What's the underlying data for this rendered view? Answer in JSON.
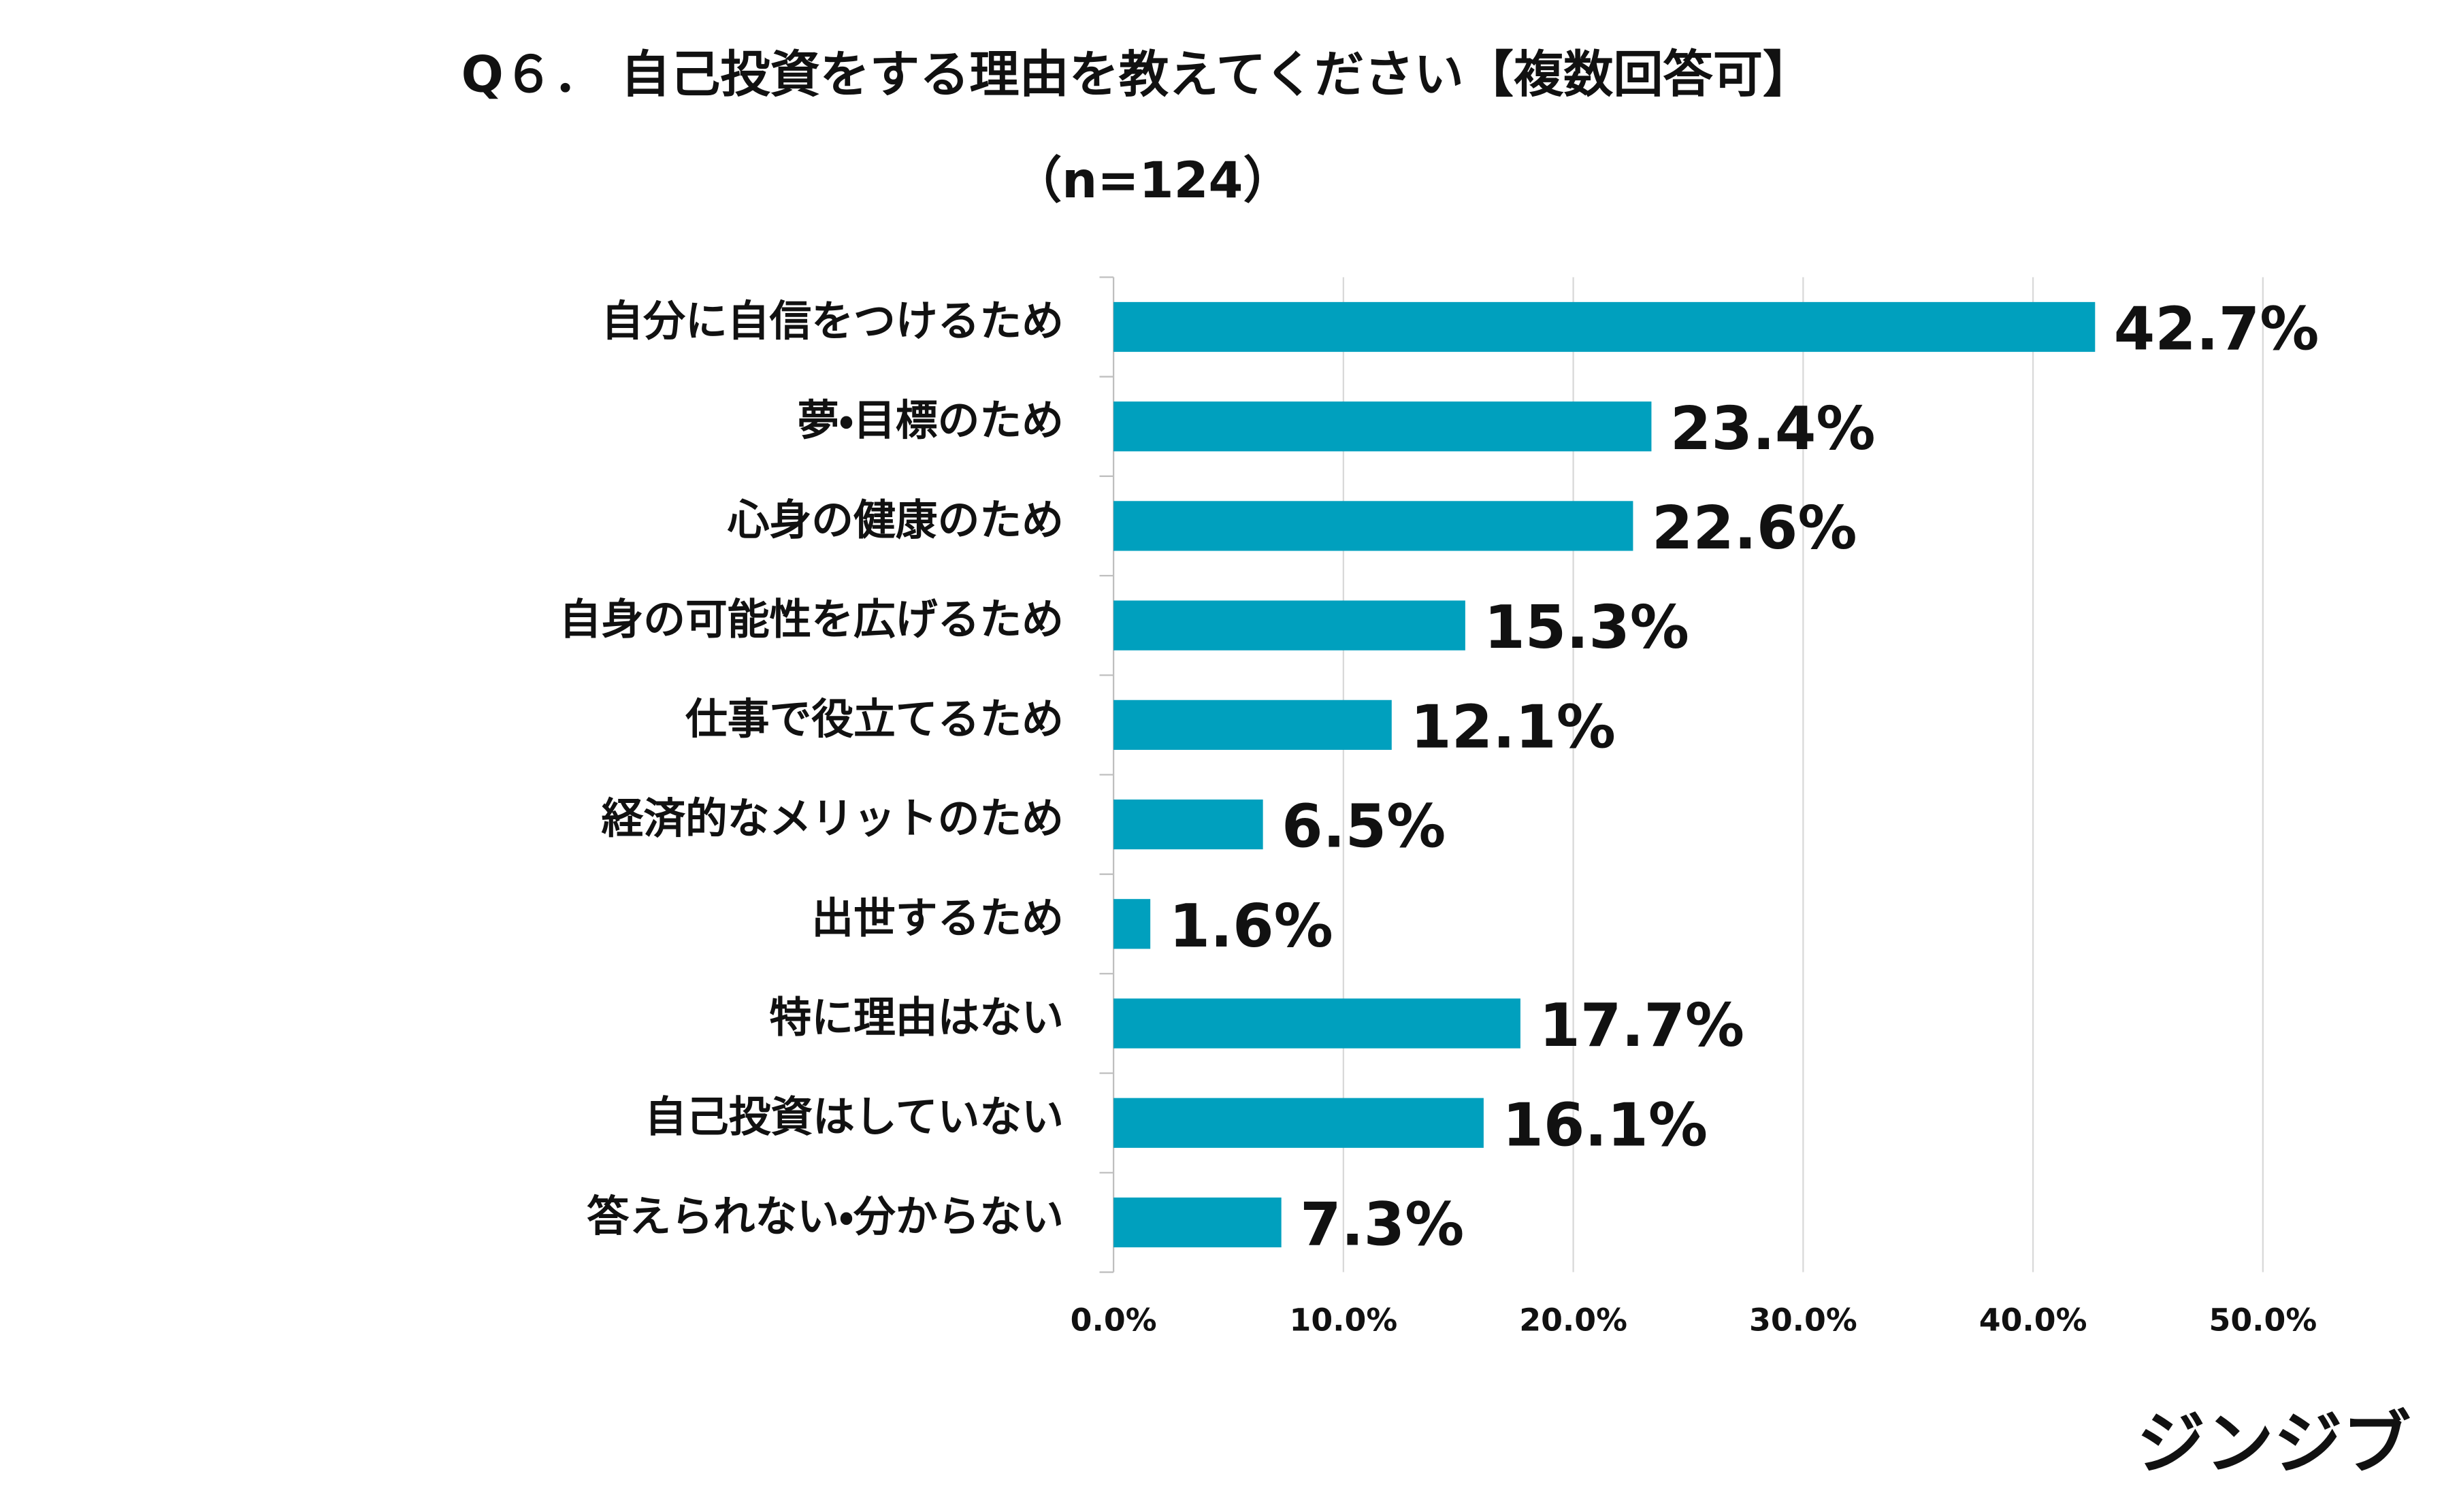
{
  "chart_data": {
    "type": "barh",
    "title": "Q６． 自己投資をする理由を教えてください【複数回答可】",
    "subtitle": "（n=124）",
    "categories": [
      "自分に自信をつけるため",
      "夢・目標のため",
      "心身の健康のため",
      "自身の可能性を広げるため",
      "仕事で役立てるため",
      "経済的なメリットのため",
      "出世するため",
      "特に理由はない",
      "自己投資はしていない",
      "答えられない・分からない"
    ],
    "values": [
      42.7,
      23.4,
      22.6,
      15.3,
      12.1,
      6.5,
      1.6,
      17.7,
      16.1,
      7.3
    ],
    "value_labels": [
      "42.7%",
      "23.4%",
      "22.6%",
      "15.3%",
      "12.1%",
      "6.5%",
      "1.6%",
      "17.7%",
      "16.1%",
      "7.3%"
    ],
    "color": "#00a0be",
    "xlim": [
      0,
      50
    ],
    "xticks": [
      {
        "value": 0,
        "label": "0.0%"
      },
      {
        "value": 10,
        "label": "10.0%"
      },
      {
        "value": 20,
        "label": "20.0%"
      },
      {
        "value": 30,
        "label": "30.0%"
      },
      {
        "value": 40,
        "label": "40.0%"
      },
      {
        "value": 50,
        "label": "50.0%"
      }
    ],
    "grid": true
  },
  "logo": "ジンジブ"
}
